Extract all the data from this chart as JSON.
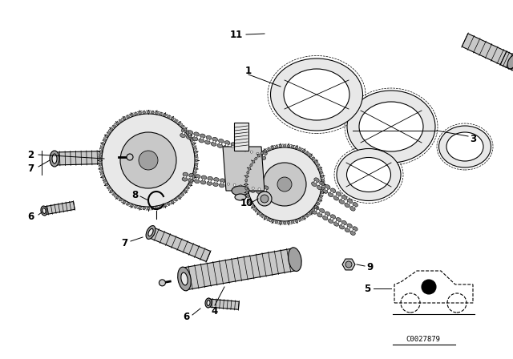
{
  "bg_color": "#ffffff",
  "fig_width": 6.4,
  "fig_height": 4.48,
  "dpi": 100,
  "diagram_code": "C0027879",
  "lc": "#000000",
  "fc_light": "#e8e8e8",
  "fc_mid": "#c8c8c8",
  "fc_dark": "#a0a0a0",
  "fc_chain": "#888888"
}
